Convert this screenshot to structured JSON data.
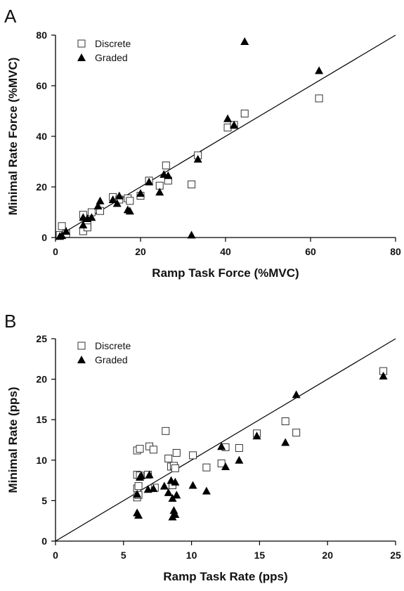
{
  "chart_data": [
    {
      "panel": "A",
      "type": "scatter",
      "xlabel": "Ramp Task Force (%MVC)",
      "ylabel": "Minimal Rate Force (%MVC)",
      "xlim": [
        0,
        80
      ],
      "ylim": [
        0,
        80
      ],
      "xticks": [
        0,
        20,
        40,
        60,
        80
      ],
      "yticks": [
        0,
        20,
        40,
        60,
        80
      ],
      "grid": false,
      "legend_position": "top-left",
      "reference_line": {
        "x": [
          0,
          80
        ],
        "y": [
          0,
          80
        ]
      },
      "series": [
        {
          "name": "Discrete",
          "marker": "open-square",
          "points": [
            [
              1,
              1
            ],
            [
              1.5,
              4.5
            ],
            [
              2.5,
              1.5
            ],
            [
              6.5,
              2.5
            ],
            [
              6.5,
              9
            ],
            [
              7.5,
              5
            ],
            [
              7.5,
              4
            ],
            [
              8.5,
              10
            ],
            [
              10.5,
              10.5
            ],
            [
              13.5,
              16
            ],
            [
              15,
              15
            ],
            [
              17,
              15.5
            ],
            [
              17.5,
              14.5
            ],
            [
              20,
              16.5
            ],
            [
              22,
              22.5
            ],
            [
              24.5,
              20.5
            ],
            [
              26,
              28.5
            ],
            [
              26.5,
              22.5
            ],
            [
              32,
              21
            ],
            [
              33.5,
              32.5
            ],
            [
              40.5,
              43.5
            ],
            [
              42,
              44.5
            ],
            [
              44.5,
              49
            ],
            [
              62,
              55
            ]
          ]
        },
        {
          "name": "Graded",
          "marker": "filled-triangle",
          "points": [
            [
              1,
              0.5
            ],
            [
              1.5,
              0.8
            ],
            [
              2.5,
              2.5
            ],
            [
              6.5,
              5
            ],
            [
              6.5,
              8
            ],
            [
              7.5,
              7.5
            ],
            [
              8.5,
              8
            ],
            [
              10,
              12.5
            ],
            [
              10.5,
              14.5
            ],
            [
              13.5,
              15
            ],
            [
              14.5,
              13.5
            ],
            [
              15,
              16.5
            ],
            [
              17,
              11
            ],
            [
              17.5,
              10.5
            ],
            [
              20,
              17.5
            ],
            [
              22,
              22
            ],
            [
              24.5,
              18
            ],
            [
              25.5,
              25
            ],
            [
              26.5,
              24.5
            ],
            [
              32,
              1
            ],
            [
              33.5,
              31
            ],
            [
              40.5,
              47
            ],
            [
              42,
              44.5
            ],
            [
              44.5,
              77.5
            ],
            [
              62,
              66
            ]
          ]
        }
      ]
    },
    {
      "panel": "B",
      "type": "scatter",
      "xlabel": "Ramp Task Rate (pps)",
      "ylabel": "Minimal Rate (pps)",
      "xlim": [
        0,
        25
      ],
      "ylim": [
        0,
        25
      ],
      "xticks": [
        0,
        5,
        10,
        15,
        20,
        25
      ],
      "yticks": [
        0,
        5,
        10,
        15,
        20,
        25
      ],
      "grid": false,
      "legend_position": "top-left",
      "reference_line": {
        "x": [
          0,
          25
        ],
        "y": [
          0,
          25
        ]
      },
      "series": [
        {
          "name": "Discrete",
          "marker": "open-square",
          "points": [
            [
              6,
              11.2
            ],
            [
              6.2,
              11.4
            ],
            [
              6.9,
              11.7
            ],
            [
              7.2,
              11.3
            ],
            [
              8.1,
              13.6
            ],
            [
              6,
              8.2
            ],
            [
              6.2,
              8.1
            ],
            [
              6.8,
              8.2
            ],
            [
              6,
              6.5
            ],
            [
              6.1,
              6.8
            ],
            [
              6,
              5.4
            ],
            [
              6.1,
              5.7
            ],
            [
              7.3,
              6.6
            ],
            [
              8.3,
              10.2
            ],
            [
              8.5,
              9.2
            ],
            [
              8.7,
              9.3
            ],
            [
              8.9,
              10.9
            ],
            [
              8.8,
              9
            ],
            [
              8.6,
              6.9
            ],
            [
              10.1,
              10.6
            ],
            [
              11.1,
              9.1
            ],
            [
              12.2,
              9.6
            ],
            [
              12.5,
              11.6
            ],
            [
              13.5,
              11.5
            ],
            [
              14.8,
              13.3
            ],
            [
              16.9,
              14.8
            ],
            [
              17.7,
              13.4
            ],
            [
              24.1,
              21
            ]
          ]
        },
        {
          "name": "Graded",
          "marker": "filled-triangle",
          "points": [
            [
              6,
              5.8
            ],
            [
              6,
              3.5
            ],
            [
              6.1,
              3.2
            ],
            [
              6.2,
              7.9
            ],
            [
              6.3,
              8.1
            ],
            [
              6.8,
              6.4
            ],
            [
              6.9,
              8.2
            ],
            [
              7.2,
              6.5
            ],
            [
              8,
              6.8
            ],
            [
              8.3,
              6
            ],
            [
              8.5,
              7.5
            ],
            [
              8.6,
              5.3
            ],
            [
              8.7,
              3.8
            ],
            [
              8.8,
              7.3
            ],
            [
              8.9,
              5.7
            ],
            [
              8.6,
              3
            ],
            [
              8.8,
              3.3
            ],
            [
              10.1,
              6.9
            ],
            [
              11.1,
              6.2
            ],
            [
              12.2,
              11.7
            ],
            [
              12.5,
              9.2
            ],
            [
              13.5,
              10
            ],
            [
              14.8,
              13
            ],
            [
              16.9,
              12.2
            ],
            [
              17.7,
              18.1
            ],
            [
              24.1,
              20.4
            ]
          ]
        }
      ]
    }
  ]
}
